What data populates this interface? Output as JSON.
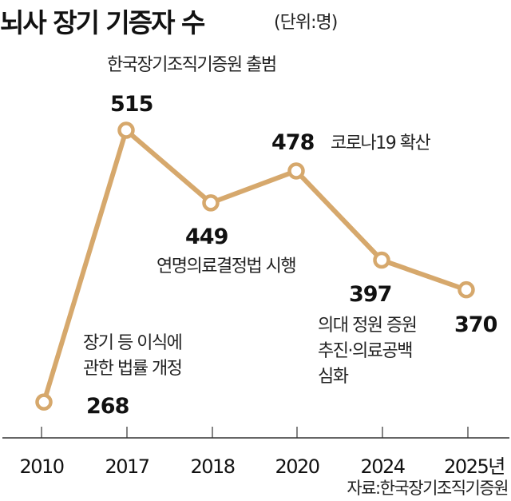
{
  "chart_data": {
    "type": "line",
    "title": "뇌사 장기 기증자 수",
    "unit": "(단위:명)",
    "categories": [
      "2010",
      "2017",
      "2018",
      "2020",
      "2024",
      "2025년"
    ],
    "values": [
      268,
      515,
      449,
      478,
      397,
      370
    ],
    "value_labels": [
      "268",
      "515",
      "449",
      "478",
      "397",
      "370"
    ],
    "annotations": [
      {
        "category": "2010",
        "lines": [
          "장기 등 이식에",
          "관한 법률 개정"
        ]
      },
      {
        "category": "2017",
        "lines": [
          "한국장기조직기증원 출범"
        ]
      },
      {
        "category": "2018",
        "lines": [
          "연명의료결정법 시행"
        ]
      },
      {
        "category": "2020",
        "lines": [
          "코로나19 확산"
        ]
      },
      {
        "category": "2024",
        "lines": [
          "의대 정원 증원",
          "추진·의료공백",
          "심화"
        ]
      }
    ],
    "source": "자료:한국장기조직기증원",
    "line_color": "#d6a86c",
    "grid": false
  }
}
